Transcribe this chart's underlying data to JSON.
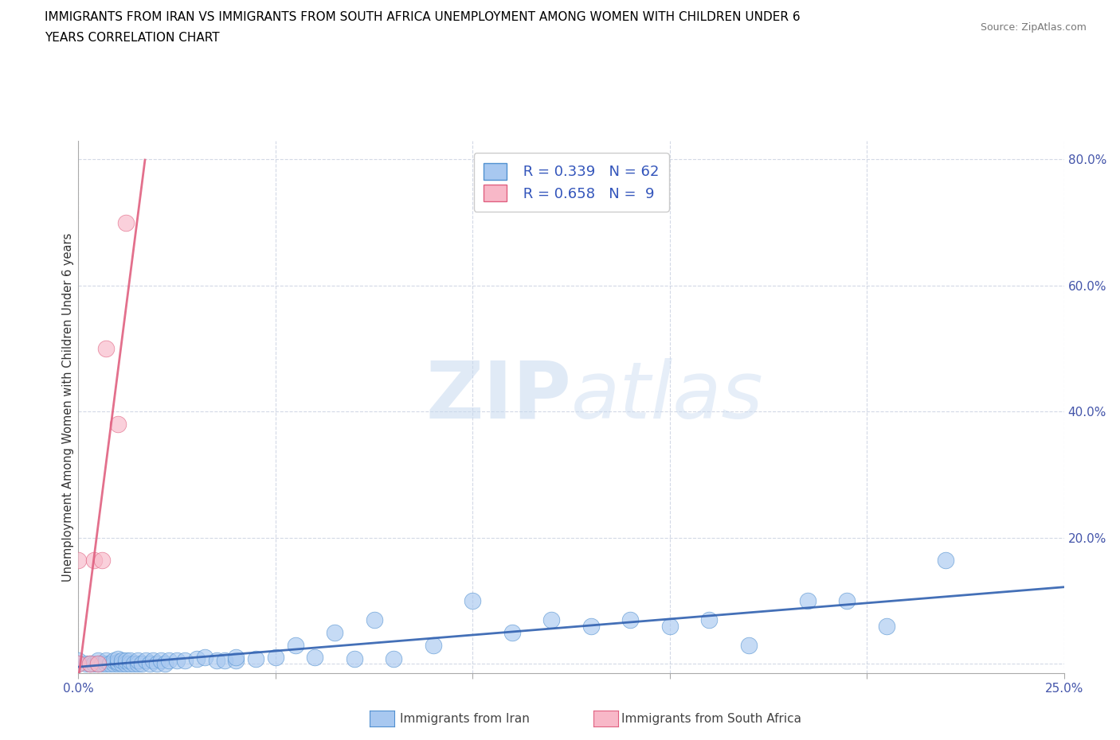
{
  "title_line1": "IMMIGRANTS FROM IRAN VS IMMIGRANTS FROM SOUTH AFRICA UNEMPLOYMENT AMONG WOMEN WITH CHILDREN UNDER 6",
  "title_line2": "YEARS CORRELATION CHART",
  "source": "Source: ZipAtlas.com",
  "ylabel": "Unemployment Among Women with Children Under 6 years",
  "xmin": 0.0,
  "xmax": 0.25,
  "ymin": -0.015,
  "ymax": 0.83,
  "xticks": [
    0.0,
    0.05,
    0.1,
    0.15,
    0.2,
    0.25
  ],
  "xtick_labels": [
    "0.0%",
    "",
    "",
    "",
    "",
    "25.0%"
  ],
  "yticks": [
    0.0,
    0.2,
    0.4,
    0.6,
    0.8
  ],
  "ytick_labels": [
    "",
    "20.0%",
    "40.0%",
    "60.0%",
    "80.0%"
  ],
  "iran_color": "#a8c8f0",
  "iran_edge_color": "#5090d0",
  "sa_color": "#f8b8c8",
  "sa_edge_color": "#e06080",
  "trendline_iran_color": "#3060b0",
  "trendline_sa_color": "#e06080",
  "R_iran": 0.339,
  "N_iran": 62,
  "R_sa": 0.658,
  "N_sa": 9,
  "watermark_zip": "ZIP",
  "watermark_atlas": "atlas",
  "iran_x": [
    0.0,
    0.0,
    0.002,
    0.003,
    0.004,
    0.005,
    0.005,
    0.006,
    0.007,
    0.007,
    0.008,
    0.009,
    0.009,
    0.01,
    0.01,
    0.01,
    0.011,
    0.011,
    0.012,
    0.012,
    0.013,
    0.013,
    0.014,
    0.015,
    0.015,
    0.016,
    0.017,
    0.018,
    0.019,
    0.02,
    0.021,
    0.022,
    0.023,
    0.025,
    0.027,
    0.03,
    0.032,
    0.035,
    0.037,
    0.04,
    0.04,
    0.045,
    0.05,
    0.055,
    0.06,
    0.065,
    0.07,
    0.075,
    0.08,
    0.09,
    0.1,
    0.11,
    0.12,
    0.13,
    0.14,
    0.15,
    0.16,
    0.17,
    0.185,
    0.195,
    0.205,
    0.22
  ],
  "iran_y": [
    0.0,
    0.005,
    0.0,
    0.0,
    0.0,
    0.0,
    0.005,
    0.0,
    0.0,
    0.005,
    0.0,
    0.0,
    0.005,
    0.0,
    0.003,
    0.008,
    0.0,
    0.005,
    0.0,
    0.005,
    0.0,
    0.005,
    0.0,
    0.0,
    0.005,
    0.0,
    0.005,
    0.0,
    0.005,
    0.0,
    0.005,
    0.0,
    0.005,
    0.005,
    0.005,
    0.008,
    0.01,
    0.005,
    0.005,
    0.005,
    0.01,
    0.008,
    0.01,
    0.03,
    0.01,
    0.05,
    0.008,
    0.07,
    0.008,
    0.03,
    0.1,
    0.05,
    0.07,
    0.06,
    0.07,
    0.06,
    0.07,
    0.03,
    0.1,
    0.1,
    0.06,
    0.165
  ],
  "sa_x": [
    0.0,
    0.0,
    0.003,
    0.004,
    0.005,
    0.006,
    0.007,
    0.01,
    0.012
  ],
  "sa_y": [
    0.0,
    0.165,
    0.0,
    0.165,
    0.0,
    0.165,
    0.5,
    0.38,
    0.7
  ]
}
